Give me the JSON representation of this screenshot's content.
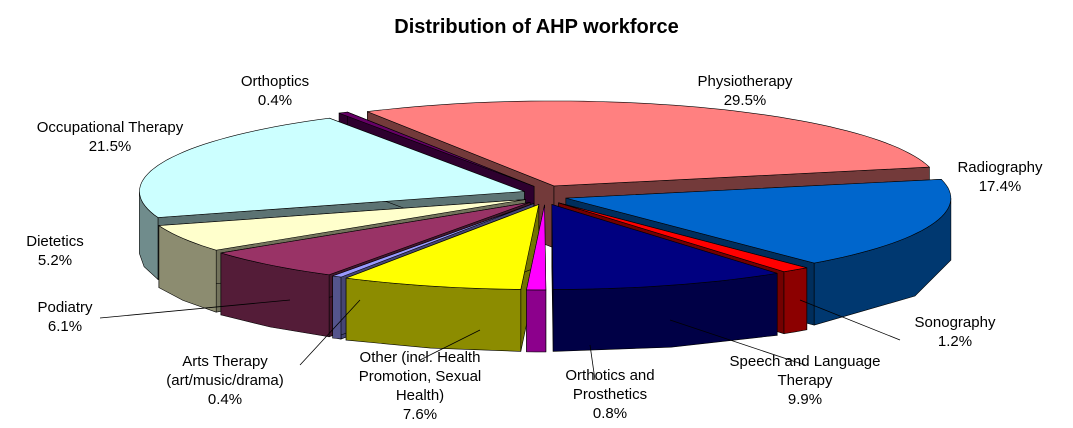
{
  "chart_data": {
    "type": "pie3d",
    "title": "Distribution of AHP workforce",
    "categories": [
      "Physiotherapy",
      "Radiography",
      "Sonography",
      "Speech and Language Therapy",
      "Orthotics and Prosthetics",
      "Other (incl. Health Promotion, Sexual Health)",
      "Arts Therapy (art/music/drama)",
      "Podiatry",
      "Dietetics",
      "Occupational Therapy",
      "Orthoptics"
    ],
    "values": [
      29.5,
      17.4,
      1.2,
      9.9,
      0.8,
      7.6,
      0.4,
      6.1,
      5.2,
      21.5,
      0.4
    ],
    "value_labels": [
      "29.5%",
      "17.4%",
      "1.2%",
      "9.9%",
      "0.8%",
      "7.6%",
      "0.4%",
      "6.1%",
      "5.2%",
      "21.5%",
      "0.4%"
    ],
    "colors": [
      "#ff8080",
      "#0066cc",
      "#ff0000",
      "#000080",
      "#ff00ff",
      "#ffff00",
      "#9999ff",
      "#993366",
      "#ffffcc",
      "#ccffff",
      "#660066"
    ]
  }
}
